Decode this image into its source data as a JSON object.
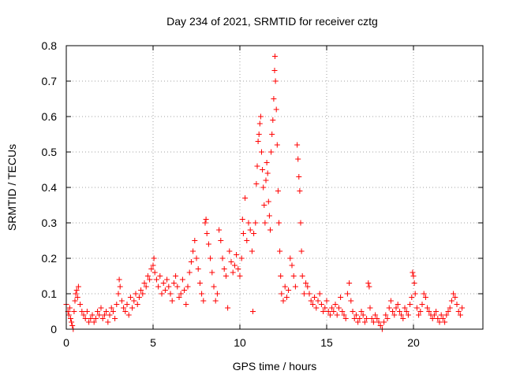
{
  "chart_data": {
    "type": "scatter",
    "title": "Day 234 of 2021, SRMTID for receiver cztg",
    "xlabel": "GPS time / hours",
    "ylabel": "SRMTID / TECUs",
    "xlim": [
      0,
      24
    ],
    "ylim": [
      0,
      0.8
    ],
    "xticks": [
      0,
      5,
      10,
      15,
      20
    ],
    "yticks": [
      0,
      0.1,
      0.2,
      0.3,
      0.4,
      0.5,
      0.6,
      0.7,
      0.8
    ],
    "xtick_labels": [
      "0",
      "5",
      "10",
      "15",
      "20"
    ],
    "ytick_labels": [
      "0",
      "0.1",
      "0.2",
      "0.3",
      "0.4",
      "0.5",
      "0.6",
      "0.7",
      "0.8"
    ],
    "grid": true,
    "marker": "+",
    "color": "#ff0000",
    "series": [
      {
        "name": "SRMTID",
        "points": [
          [
            0.0,
            0.07
          ],
          [
            0.1,
            0.05
          ],
          [
            0.15,
            0.04
          ],
          [
            0.2,
            0.06
          ],
          [
            0.25,
            0.03
          ],
          [
            0.3,
            0.02
          ],
          [
            0.35,
            0.01
          ],
          [
            0.4,
            0.0
          ],
          [
            0.45,
            0.05
          ],
          [
            0.5,
            0.08
          ],
          [
            0.55,
            0.1
          ],
          [
            0.6,
            0.11
          ],
          [
            0.65,
            0.09
          ],
          [
            0.7,
            0.12
          ],
          [
            0.8,
            0.07
          ],
          [
            0.9,
            0.05
          ],
          [
            1.0,
            0.04
          ],
          [
            1.1,
            0.03
          ],
          [
            1.2,
            0.05
          ],
          [
            1.3,
            0.02
          ],
          [
            1.4,
            0.03
          ],
          [
            1.5,
            0.04
          ],
          [
            1.6,
            0.02
          ],
          [
            1.7,
            0.03
          ],
          [
            1.8,
            0.05
          ],
          [
            1.9,
            0.04
          ],
          [
            2.0,
            0.06
          ],
          [
            2.1,
            0.03
          ],
          [
            2.2,
            0.04
          ],
          [
            2.3,
            0.05
          ],
          [
            2.4,
            0.02
          ],
          [
            2.5,
            0.04
          ],
          [
            2.6,
            0.06
          ],
          [
            2.7,
            0.05
          ],
          [
            2.8,
            0.03
          ],
          [
            2.9,
            0.07
          ],
          [
            3.0,
            0.1
          ],
          [
            3.05,
            0.14
          ],
          [
            3.1,
            0.12
          ],
          [
            3.2,
            0.08
          ],
          [
            3.3,
            0.06
          ],
          [
            3.4,
            0.05
          ],
          [
            3.5,
            0.07
          ],
          [
            3.6,
            0.04
          ],
          [
            3.7,
            0.09
          ],
          [
            3.8,
            0.06
          ],
          [
            3.9,
            0.08
          ],
          [
            4.0,
            0.1
          ],
          [
            4.1,
            0.07
          ],
          [
            4.2,
            0.09
          ],
          [
            4.3,
            0.11
          ],
          [
            4.4,
            0.1
          ],
          [
            4.5,
            0.13
          ],
          [
            4.6,
            0.12
          ],
          [
            4.7,
            0.15
          ],
          [
            4.8,
            0.14
          ],
          [
            4.9,
            0.17
          ],
          [
            5.0,
            0.18
          ],
          [
            5.05,
            0.2
          ],
          [
            5.1,
            0.16
          ],
          [
            5.2,
            0.14
          ],
          [
            5.3,
            0.12
          ],
          [
            5.4,
            0.15
          ],
          [
            5.5,
            0.1
          ],
          [
            5.6,
            0.13
          ],
          [
            5.7,
            0.11
          ],
          [
            5.8,
            0.14
          ],
          [
            5.9,
            0.12
          ],
          [
            6.0,
            0.1
          ],
          [
            6.1,
            0.08
          ],
          [
            6.2,
            0.13
          ],
          [
            6.3,
            0.15
          ],
          [
            6.4,
            0.12
          ],
          [
            6.5,
            0.09
          ],
          [
            6.6,
            0.1
          ],
          [
            6.7,
            0.14
          ],
          [
            6.8,
            0.11
          ],
          [
            6.9,
            0.07
          ],
          [
            7.0,
            0.12
          ],
          [
            7.1,
            0.16
          ],
          [
            7.2,
            0.19
          ],
          [
            7.3,
            0.22
          ],
          [
            7.4,
            0.25
          ],
          [
            7.5,
            0.2
          ],
          [
            7.6,
            0.17
          ],
          [
            7.7,
            0.13
          ],
          [
            7.8,
            0.1
          ],
          [
            7.9,
            0.08
          ],
          [
            8.0,
            0.3
          ],
          [
            8.05,
            0.31
          ],
          [
            8.1,
            0.27
          ],
          [
            8.2,
            0.24
          ],
          [
            8.3,
            0.2
          ],
          [
            8.4,
            0.16
          ],
          [
            8.5,
            0.12
          ],
          [
            8.6,
            0.08
          ],
          [
            8.7,
            0.1
          ],
          [
            8.8,
            0.28
          ],
          [
            8.9,
            0.25
          ],
          [
            9.0,
            0.2
          ],
          [
            9.1,
            0.17
          ],
          [
            9.2,
            0.15
          ],
          [
            9.3,
            0.06
          ],
          [
            9.4,
            0.22
          ],
          [
            9.5,
            0.19
          ],
          [
            9.6,
            0.16
          ],
          [
            9.7,
            0.18
          ],
          [
            9.8,
            0.21
          ],
          [
            9.9,
            0.17
          ],
          [
            10.0,
            0.15
          ],
          [
            10.1,
            0.2
          ],
          [
            10.15,
            0.31
          ],
          [
            10.2,
            0.27
          ],
          [
            10.3,
            0.37
          ],
          [
            10.4,
            0.25
          ],
          [
            10.5,
            0.3
          ],
          [
            10.6,
            0.28
          ],
          [
            10.7,
            0.22
          ],
          [
            10.75,
            0.05
          ],
          [
            10.8,
            0.27
          ],
          [
            10.9,
            0.3
          ],
          [
            10.95,
            0.41
          ],
          [
            11.0,
            0.46
          ],
          [
            11.05,
            0.53
          ],
          [
            11.1,
            0.55
          ],
          [
            11.15,
            0.58
          ],
          [
            11.2,
            0.6
          ],
          [
            11.25,
            0.5
          ],
          [
            11.3,
            0.45
          ],
          [
            11.35,
            0.4
          ],
          [
            11.4,
            0.35
          ],
          [
            11.45,
            0.3
          ],
          [
            11.5,
            0.42
          ],
          [
            11.55,
            0.47
          ],
          [
            11.6,
            0.44
          ],
          [
            11.65,
            0.36
          ],
          [
            11.7,
            0.32
          ],
          [
            11.75,
            0.28
          ],
          [
            11.8,
            0.5
          ],
          [
            11.85,
            0.55
          ],
          [
            11.9,
            0.59
          ],
          [
            11.95,
            0.65
          ],
          [
            12.0,
            0.73
          ],
          [
            12.02,
            0.77
          ],
          [
            12.05,
            0.7
          ],
          [
            12.1,
            0.62
          ],
          [
            12.15,
            0.52
          ],
          [
            12.2,
            0.39
          ],
          [
            12.25,
            0.3
          ],
          [
            12.3,
            0.22
          ],
          [
            12.35,
            0.15
          ],
          [
            12.4,
            0.1
          ],
          [
            12.5,
            0.08
          ],
          [
            12.6,
            0.12
          ],
          [
            12.7,
            0.09
          ],
          [
            12.8,
            0.11
          ],
          [
            12.9,
            0.2
          ],
          [
            13.0,
            0.18
          ],
          [
            13.1,
            0.15
          ],
          [
            13.2,
            0.12
          ],
          [
            13.3,
            0.52
          ],
          [
            13.35,
            0.48
          ],
          [
            13.4,
            0.43
          ],
          [
            13.45,
            0.39
          ],
          [
            13.5,
            0.3
          ],
          [
            13.55,
            0.22
          ],
          [
            13.6,
            0.15
          ],
          [
            13.7,
            0.1
          ],
          [
            13.8,
            0.13
          ],
          [
            13.9,
            0.12
          ],
          [
            14.0,
            0.1
          ],
          [
            14.1,
            0.08
          ],
          [
            14.2,
            0.07
          ],
          [
            14.3,
            0.09
          ],
          [
            14.4,
            0.06
          ],
          [
            14.5,
            0.08
          ],
          [
            14.6,
            0.1
          ],
          [
            14.7,
            0.07
          ],
          [
            14.8,
            0.05
          ],
          [
            14.9,
            0.06
          ],
          [
            15.0,
            0.08
          ],
          [
            15.1,
            0.05
          ],
          [
            15.2,
            0.04
          ],
          [
            15.3,
            0.06
          ],
          [
            15.4,
            0.05
          ],
          [
            15.5,
            0.07
          ],
          [
            15.6,
            0.04
          ],
          [
            15.7,
            0.06
          ],
          [
            15.8,
            0.09
          ],
          [
            15.9,
            0.05
          ],
          [
            16.0,
            0.04
          ],
          [
            16.1,
            0.03
          ],
          [
            16.2,
            0.1
          ],
          [
            16.3,
            0.13
          ],
          [
            16.4,
            0.08
          ],
          [
            16.5,
            0.05
          ],
          [
            16.6,
            0.03
          ],
          [
            16.7,
            0.04
          ],
          [
            16.8,
            0.02
          ],
          [
            16.9,
            0.03
          ],
          [
            17.0,
            0.05
          ],
          [
            17.1,
            0.04
          ],
          [
            17.2,
            0.02
          ],
          [
            17.3,
            0.03
          ],
          [
            17.4,
            0.13
          ],
          [
            17.45,
            0.12
          ],
          [
            17.5,
            0.06
          ],
          [
            17.6,
            0.03
          ],
          [
            17.7,
            0.02
          ],
          [
            17.8,
            0.04
          ],
          [
            17.9,
            0.03
          ],
          [
            18.0,
            0.02
          ],
          [
            18.1,
            0.01
          ],
          [
            18.2,
            0.0
          ],
          [
            18.3,
            0.02
          ],
          [
            18.4,
            0.04
          ],
          [
            18.5,
            0.03
          ],
          [
            18.6,
            0.06
          ],
          [
            18.7,
            0.08
          ],
          [
            18.8,
            0.05
          ],
          [
            18.9,
            0.04
          ],
          [
            19.0,
            0.06
          ],
          [
            19.1,
            0.07
          ],
          [
            19.2,
            0.05
          ],
          [
            19.3,
            0.04
          ],
          [
            19.4,
            0.03
          ],
          [
            19.5,
            0.06
          ],
          [
            19.6,
            0.05
          ],
          [
            19.7,
            0.04
          ],
          [
            19.8,
            0.07
          ],
          [
            19.9,
            0.09
          ],
          [
            19.95,
            0.16
          ],
          [
            20.0,
            0.15
          ],
          [
            20.05,
            0.13
          ],
          [
            20.1,
            0.1
          ],
          [
            20.2,
            0.06
          ],
          [
            20.3,
            0.04
          ],
          [
            20.4,
            0.05
          ],
          [
            20.5,
            0.07
          ],
          [
            20.6,
            0.1
          ],
          [
            20.7,
            0.09
          ],
          [
            20.8,
            0.06
          ],
          [
            20.9,
            0.05
          ],
          [
            21.0,
            0.04
          ],
          [
            21.1,
            0.03
          ],
          [
            21.2,
            0.04
          ],
          [
            21.3,
            0.05
          ],
          [
            21.4,
            0.03
          ],
          [
            21.5,
            0.02
          ],
          [
            21.6,
            0.04
          ],
          [
            21.7,
            0.03
          ],
          [
            21.8,
            0.02
          ],
          [
            21.9,
            0.04
          ],
          [
            22.0,
            0.05
          ],
          [
            22.1,
            0.06
          ],
          [
            22.2,
            0.08
          ],
          [
            22.3,
            0.1
          ],
          [
            22.4,
            0.09
          ],
          [
            22.5,
            0.07
          ],
          [
            22.6,
            0.05
          ],
          [
            22.7,
            0.04
          ],
          [
            22.8,
            0.06
          ]
        ]
      }
    ]
  }
}
